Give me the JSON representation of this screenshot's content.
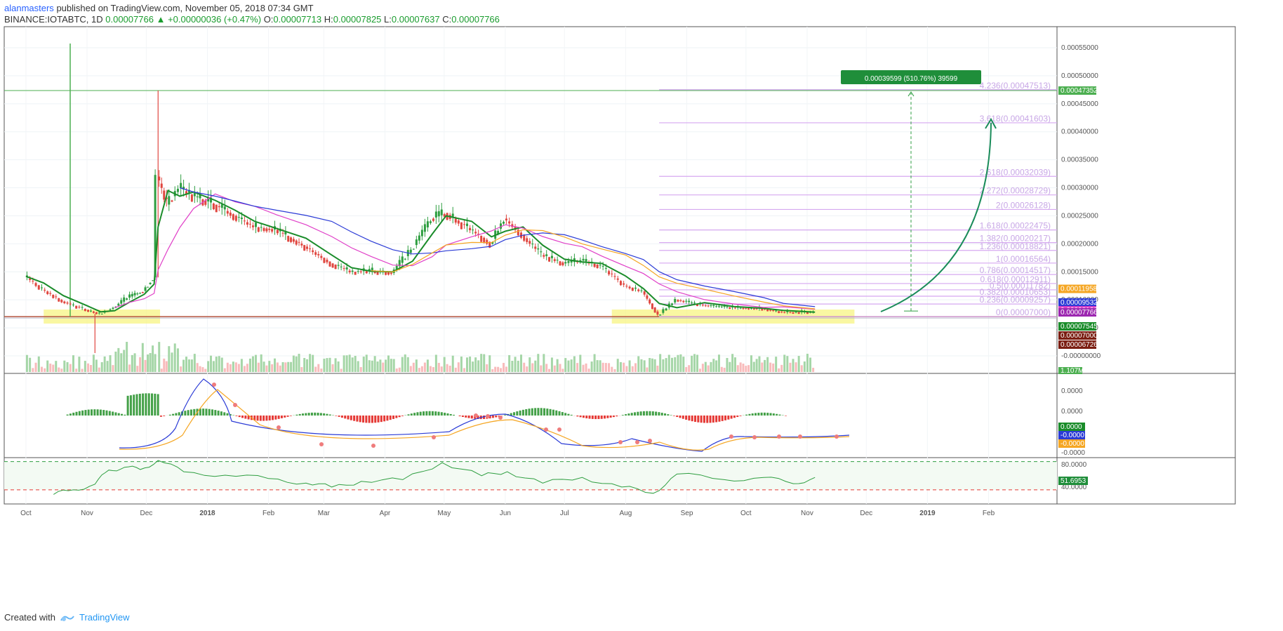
{
  "header": {
    "author": "alanmasters",
    "published": "published on TradingView.com, November 05, 2018 07:34 GMT",
    "symbol": "BINANCE:IOTABTC, 1D",
    "last": "0.00007766",
    "change": "+0.00000036 (+0.47%)",
    "o_label": "O:",
    "o": "0.00007713",
    "h_label": "H:",
    "h": "0.00007825",
    "l_label": "L:",
    "l": "0.00007637",
    "c_label": "C:",
    "c": "0.00007766"
  },
  "footer": {
    "created": "Created with",
    "brand": "TradingView"
  },
  "colors": {
    "up": "#26a69a",
    "down": "#ef5350",
    "ma_fast": "#1a8c2a",
    "ma_pink": "#e040c8",
    "ma_blue": "#2b3bd6",
    "ma_orange": "#f5a623",
    "fib": "#d6a8f0",
    "highlight": "#f7f37a"
  },
  "chart_data": [
    {
      "type": "line",
      "title": "",
      "price_axis_ticks": [
        "0.00055000",
        "0.00050000",
        "0.00045000",
        "0.00040000",
        "0.00035000",
        "0.00030000",
        "0.00025000",
        "0.00020000",
        "0.00015000",
        "0.00010000",
        "0.00005000",
        "-0.00000000"
      ],
      "x_ticks": [
        "Oct",
        "Nov",
        "Dec",
        "2018",
        "Feb",
        "Mar",
        "Apr",
        "May",
        "Jun",
        "Jul",
        "Aug",
        "Sep",
        "Oct",
        "Nov",
        "Dec",
        "2019",
        "Feb"
      ],
      "price_series": [
        {
          "x": "2017-10-01",
          "y": 0.000142
        },
        {
          "x": "2017-10-10",
          "y": 0.000118
        },
        {
          "x": "2017-10-20",
          "y": 9.7e-05
        },
        {
          "x": "2017-11-01",
          "y": 8.2e-05
        },
        {
          "x": "2017-11-08",
          "y": 7.5e-05
        },
        {
          "x": "2017-11-15",
          "y": 8.6e-05
        },
        {
          "x": "2017-11-22",
          "y": 0.000104
        },
        {
          "x": "2017-11-30",
          "y": 0.000116
        },
        {
          "x": "2017-12-05",
          "y": 0.00014
        },
        {
          "x": "2017-12-07",
          "y": 0.00032
        },
        {
          "x": "2017-12-12",
          "y": 0.00027
        },
        {
          "x": "2017-12-18",
          "y": 0.0003
        },
        {
          "x": "2017-12-25",
          "y": 0.000285
        },
        {
          "x": "2018-01-05",
          "y": 0.00027
        },
        {
          "x": "2018-01-15",
          "y": 0.00025
        },
        {
          "x": "2018-01-25",
          "y": 0.00023
        },
        {
          "x": "2018-02-05",
          "y": 0.000225
        },
        {
          "x": "2018-02-20",
          "y": 0.000195
        },
        {
          "x": "2018-03-05",
          "y": 0.000165
        },
        {
          "x": "2018-03-15",
          "y": 0.00015
        },
        {
          "x": "2018-03-25",
          "y": 0.000152
        },
        {
          "x": "2018-04-05",
          "y": 0.000148
        },
        {
          "x": "2018-04-15",
          "y": 0.00019
        },
        {
          "x": "2018-04-25",
          "y": 0.000245
        },
        {
          "x": "2018-05-02",
          "y": 0.000255
        },
        {
          "x": "2018-05-15",
          "y": 0.000225
        },
        {
          "x": "2018-05-25",
          "y": 0.0002
        },
        {
          "x": "2018-06-01",
          "y": 0.000245
        },
        {
          "x": "2018-06-10",
          "y": 0.000215
        },
        {
          "x": "2018-06-20",
          "y": 0.00018
        },
        {
          "x": "2018-07-01",
          "y": 0.000165
        },
        {
          "x": "2018-07-10",
          "y": 0.00017
        },
        {
          "x": "2018-07-20",
          "y": 0.00016
        },
        {
          "x": "2018-08-01",
          "y": 0.000125
        },
        {
          "x": "2018-08-10",
          "y": 0.000115
        },
        {
          "x": "2018-08-18",
          "y": 7.2e-05
        },
        {
          "x": "2018-08-27",
          "y": 0.0001
        },
        {
          "x": "2018-09-10",
          "y": 9e-05
        },
        {
          "x": "2018-09-25",
          "y": 8.6e-05
        },
        {
          "x": "2018-10-10",
          "y": 8.4e-05
        },
        {
          "x": "2018-10-20",
          "y": 7.8e-05
        },
        {
          "x": "2018-11-05",
          "y": 7.8e-05
        }
      ],
      "fib_levels": [
        {
          "label": "4.236(0.00047513)",
          "value": 0.00047513
        },
        {
          "label": "3.618(0.00041603)",
          "value": 0.00041603
        },
        {
          "label": "2.618(0.00032039)",
          "value": 0.00032039
        },
        {
          "label": "2.272(0.00028729)",
          "value": 0.00028729
        },
        {
          "label": "2(0.00026128)",
          "value": 0.00026128
        },
        {
          "label": "1.618(0.00022475)",
          "value": 0.00022475
        },
        {
          "label": "1.382(0.00020217)",
          "value": 0.00020217
        },
        {
          "label": "1.236(0.00018821)",
          "value": 0.00018821
        },
        {
          "label": "1(0.00016564)",
          "value": 0.00016564
        },
        {
          "label": "0.786(0.00014517)",
          "value": 0.00014517
        },
        {
          "label": "0.618(0.00012911)",
          "value": 0.00012911
        },
        {
          "label": "0.5(0.00011782)",
          "value": 0.00011782
        },
        {
          "label": "0.382(0.00010653)",
          "value": 0.00010653
        },
        {
          "label": "0.236(0.00009257)",
          "value": 9.257e-05
        },
        {
          "label": "0(0.00007000)",
          "value": 7e-05
        }
      ],
      "measure_label": "0.00039599 (510.76%) 39599",
      "price_tags": [
        {
          "label": "0.00047352",
          "value": 0.00047352,
          "color": "#4caf50"
        },
        {
          "label": "0.00011958",
          "value": 0.00011958,
          "color": "#f5a623"
        },
        {
          "label": "0.00009532",
          "value": 9.532e-05,
          "color": "#2b3bd6"
        },
        {
          "label": "0.00008130",
          "value": 8.13e-05,
          "color": "#e040c8"
        },
        {
          "label": "0.00007766",
          "value": 7.766e-05,
          "color": "#9c27b0"
        },
        {
          "label": "0.00007545",
          "value": 7.545e-05,
          "color": "#1a8c2a"
        },
        {
          "label": "0.00007000",
          "value": 7e-05,
          "color": "#7b1e12"
        },
        {
          "label": "0.00006726",
          "value": 6.726e-05,
          "color": "#7b1e12"
        }
      ],
      "volume_tag": "1.107M"
    },
    {
      "type": "line",
      "title": "",
      "axis_ticks": [
        "0.0000",
        "0.0000",
        "0.0000",
        "-0.0000"
      ],
      "tags": [
        {
          "label": "0.0000",
          "color": "#1a8c2a"
        },
        {
          "label": "-0.0000",
          "color": "#2b3bd6"
        },
        {
          "label": "-0.0000",
          "color": "#f5a623"
        }
      ]
    },
    {
      "type": "line",
      "title": "",
      "axis_ticks": [
        "80.0000",
        "40.0000"
      ],
      "value_tag": "51.6953",
      "series": [
        {
          "x": "2017-10-15",
          "y": 22
        },
        {
          "x": "2017-10-25",
          "y": 30
        },
        {
          "x": "2017-11-05",
          "y": 40
        },
        {
          "x": "2017-11-12",
          "y": 65
        },
        {
          "x": "2017-11-20",
          "y": 70
        },
        {
          "x": "2017-11-28",
          "y": 66
        },
        {
          "x": "2017-12-07",
          "y": 82
        },
        {
          "x": "2017-12-20",
          "y": 62
        },
        {
          "x": "2018-01-10",
          "y": 56
        },
        {
          "x": "2018-02-01",
          "y": 50
        },
        {
          "x": "2018-02-20",
          "y": 42
        },
        {
          "x": "2018-03-05",
          "y": 35
        },
        {
          "x": "2018-03-20",
          "y": 45
        },
        {
          "x": "2018-04-10",
          "y": 48
        },
        {
          "x": "2018-04-30",
          "y": 78
        },
        {
          "x": "2018-05-20",
          "y": 55
        },
        {
          "x": "2018-06-02",
          "y": 62
        },
        {
          "x": "2018-06-20",
          "y": 42
        },
        {
          "x": "2018-07-10",
          "y": 52
        },
        {
          "x": "2018-07-30",
          "y": 35
        },
        {
          "x": "2018-08-15",
          "y": 24
        },
        {
          "x": "2018-08-27",
          "y": 58
        },
        {
          "x": "2018-09-20",
          "y": 48
        },
        {
          "x": "2018-10-10",
          "y": 52
        },
        {
          "x": "2018-10-25",
          "y": 41
        },
        {
          "x": "2018-11-05",
          "y": 52
        }
      ]
    }
  ]
}
